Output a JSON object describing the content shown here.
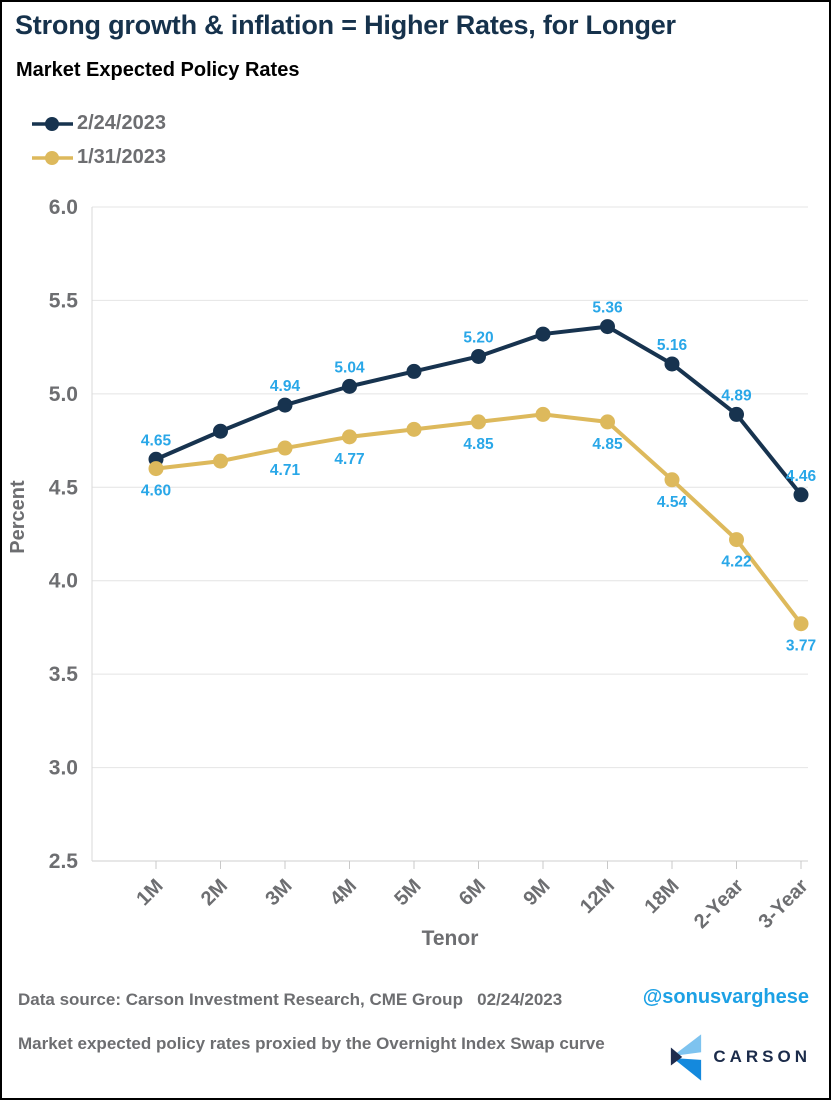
{
  "page": {
    "title": "Strong growth & inflation = Higher Rates, for Longer",
    "subtitle": "Market Expected Policy Rates"
  },
  "chart_data": {
    "type": "line",
    "categories": [
      "1M",
      "2M",
      "3M",
      "4M",
      "5M",
      "6M",
      "9M",
      "12M",
      "18M",
      "2-Year",
      "3-Year"
    ],
    "series": [
      {
        "name": "2/24/2023",
        "color": "#17334f",
        "values": [
          4.65,
          4.8,
          4.94,
          5.04,
          5.12,
          5.2,
          5.32,
          5.36,
          5.16,
          4.89,
          4.46
        ],
        "data_labels": [
          "4.65",
          null,
          "4.94",
          "5.04",
          null,
          "5.20",
          null,
          "5.36",
          "5.16",
          "4.89",
          "4.46"
        ],
        "label_position": "above"
      },
      {
        "name": "1/31/2023",
        "color": "#ddb95c",
        "values": [
          4.6,
          4.64,
          4.71,
          4.77,
          4.81,
          4.85,
          4.89,
          4.85,
          4.54,
          4.22,
          3.77
        ],
        "data_labels": [
          "4.60",
          null,
          "4.71",
          "4.77",
          null,
          "4.85",
          null,
          "4.85",
          "4.54",
          "4.22",
          "3.77"
        ],
        "label_position": "below"
      }
    ],
    "xlabel": "Tenor",
    "ylabel": "Percent",
    "ylim": [
      2.5,
      6.0
    ],
    "ytick_step": 0.5,
    "yticks": [
      "6.0",
      "5.5",
      "5.0",
      "4.5",
      "4.0",
      "3.5",
      "3.0",
      "2.5"
    ],
    "grid": true,
    "legend_position": "top-left",
    "data_label_color": "#29a7e8",
    "axis_text_color": "#6d6e71"
  },
  "footer": {
    "source_line": "Data source: Carson Investment Research, CME Group   02/24/2023",
    "handle": "@sonusvarghese",
    "note": "Market expected policy rates proxied by the Overnight Index Swap curve",
    "logo_text": "CARSON"
  },
  "colors": {
    "title": "#16324c",
    "handle_blue": "#1da1e5",
    "gray_text": "#6d6e71",
    "gridline": "#e4e4e4",
    "axis_line": "#d9d9d9",
    "logo_light_blue": "#7ec3ef",
    "logo_mid_blue": "#1489dd",
    "logo_navy": "#1e2c4e"
  }
}
